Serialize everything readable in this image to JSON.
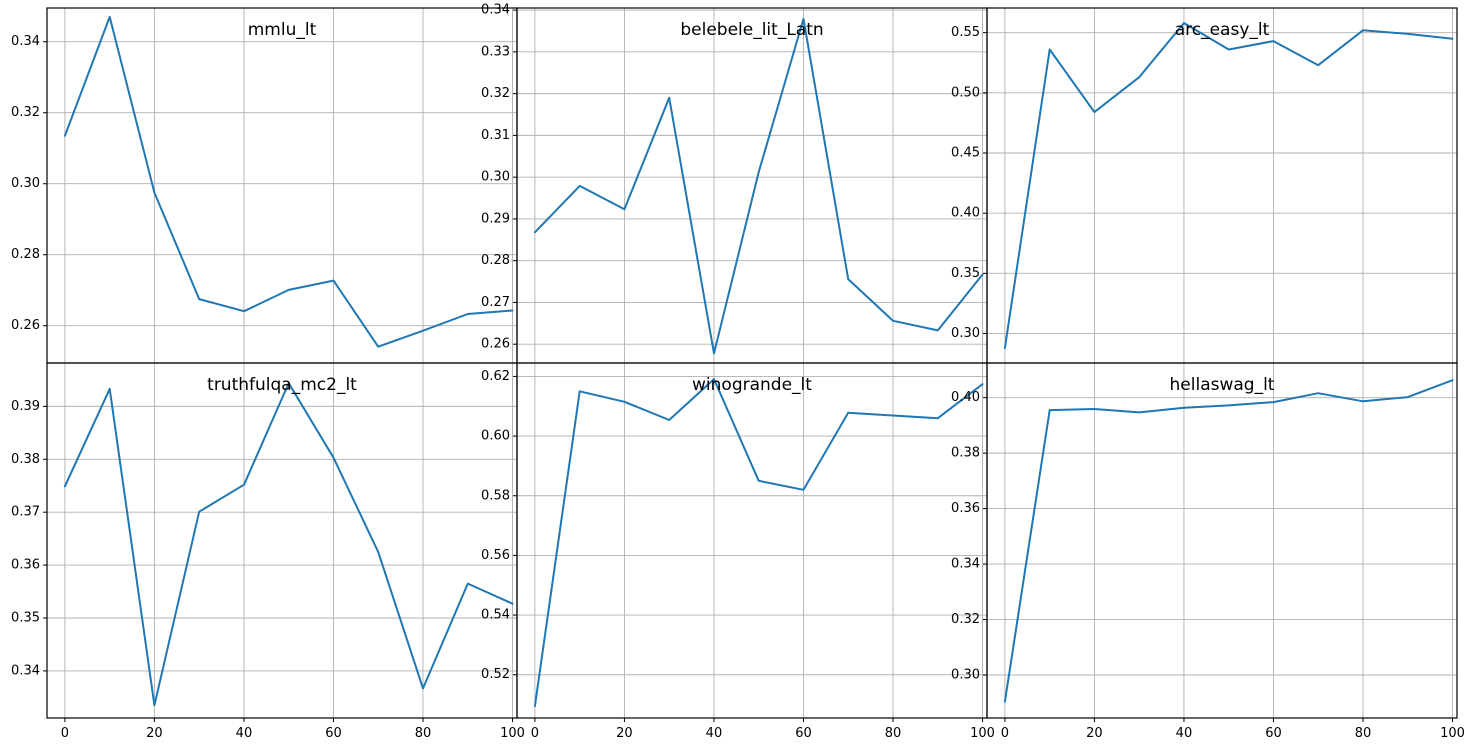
{
  "figure": {
    "line_color": "#1f77b4",
    "grid_color": "#b0b0b0",
    "layout": "2 rows x 3 columns, shared x axis, no legend"
  },
  "chart_data": [
    {
      "type": "line",
      "title": "mmlu_lt",
      "xlabel": "",
      "ylabel": "",
      "grid": true,
      "xlim": [
        -4,
        101
      ],
      "ylim": [
        0.2495,
        0.3495
      ],
      "xticks": [
        0,
        20,
        40,
        60,
        80,
        100
      ],
      "xtick_labels": [
        "0",
        "20",
        "40",
        "60",
        "80",
        "100"
      ],
      "yticks": [
        0.26,
        0.28,
        0.3,
        0.32,
        0.34
      ],
      "ytick_labels": [
        "0.26",
        "0.28",
        "0.30",
        "0.32",
        "0.34"
      ],
      "x": [
        0,
        10,
        20,
        30,
        40,
        50,
        60,
        70,
        80,
        90,
        100
      ],
      "series": [
        {
          "values": [
            0.3135,
            0.347,
            0.2975,
            0.2675,
            0.2641,
            0.2701,
            0.2727,
            0.2541,
            0.2586,
            0.2633,
            0.2643
          ]
        }
      ]
    },
    {
      "type": "line",
      "title": "belebele_lit_Latn",
      "xlabel": "",
      "ylabel": "",
      "grid": true,
      "xlim": [
        -4,
        101
      ],
      "ylim": [
        0.2555,
        0.3405
      ],
      "xticks": [
        0,
        20,
        40,
        60,
        80,
        100
      ],
      "xtick_labels": [
        "0",
        "20",
        "40",
        "60",
        "80",
        "100"
      ],
      "yticks": [
        0.26,
        0.27,
        0.28,
        0.29,
        0.3,
        0.31,
        0.32,
        0.33,
        0.34
      ],
      "ytick_labels": [
        "0.26",
        "0.27",
        "0.28",
        "0.29",
        "0.30",
        "0.31",
        "0.32",
        "0.33",
        "0.34"
      ],
      "x": [
        0,
        10,
        20,
        30,
        40,
        50,
        60,
        70,
        80,
        90,
        100
      ],
      "series": [
        {
          "values": [
            0.2868,
            0.2979,
            0.2923,
            0.319,
            0.2578,
            0.3012,
            0.3379,
            0.2756,
            0.2656,
            0.2633,
            0.2767
          ]
        }
      ]
    },
    {
      "type": "line",
      "title": "arc_easy_lt",
      "xlabel": "",
      "ylabel": "",
      "grid": true,
      "xlim": [
        -4,
        101
      ],
      "ylim": [
        0.2755,
        0.5705
      ],
      "xticks": [
        0,
        20,
        40,
        60,
        80,
        100
      ],
      "xtick_labels": [
        "0",
        "20",
        "40",
        "60",
        "80",
        "100"
      ],
      "yticks": [
        0.3,
        0.35,
        0.4,
        0.45,
        0.5,
        0.55
      ],
      "ytick_labels": [
        "0.30",
        "0.35",
        "0.40",
        "0.45",
        "0.50",
        "0.55"
      ],
      "x": [
        0,
        10,
        20,
        30,
        40,
        50,
        60,
        70,
        80,
        90,
        100
      ],
      "series": [
        {
          "values": [
            0.288,
            0.536,
            0.484,
            0.513,
            0.558,
            0.536,
            0.543,
            0.523,
            0.552,
            0.549,
            0.545
          ]
        }
      ]
    },
    {
      "type": "line",
      "title": "truthfulqa_mc2_lt",
      "xlabel": "",
      "ylabel": "",
      "grid": true,
      "xlim": [
        -4,
        101
      ],
      "ylim": [
        0.3311,
        0.3982
      ],
      "xticks": [
        0,
        20,
        40,
        60,
        80,
        100
      ],
      "xtick_labels": [
        "0",
        "20",
        "40",
        "60",
        "80",
        "100"
      ],
      "yticks": [
        0.34,
        0.35,
        0.36,
        0.37,
        0.38,
        0.39
      ],
      "ytick_labels": [
        "0.34",
        "0.35",
        "0.36",
        "0.37",
        "0.38",
        "0.39"
      ],
      "x": [
        0,
        10,
        20,
        30,
        40,
        50,
        60,
        70,
        80,
        90,
        100
      ],
      "series": [
        {
          "values": [
            0.3749,
            0.3933,
            0.3335,
            0.3701,
            0.3752,
            0.3944,
            0.3803,
            0.3625,
            0.3367,
            0.3565,
            0.3527
          ]
        }
      ]
    },
    {
      "type": "line",
      "title": "winogrande_lt",
      "xlabel": "",
      "ylabel": "",
      "grid": true,
      "xlim": [
        -4,
        101
      ],
      "ylim": [
        0.5055,
        0.6245
      ],
      "xticks": [
        0,
        20,
        40,
        60,
        80,
        100
      ],
      "xtick_labels": [
        "0",
        "20",
        "40",
        "60",
        "80",
        "100"
      ],
      "yticks": [
        0.52,
        0.54,
        0.56,
        0.58,
        0.6,
        0.62
      ],
      "ytick_labels": [
        "0.52",
        "0.54",
        "0.56",
        "0.58",
        "0.60",
        "0.62"
      ],
      "x": [
        0,
        10,
        20,
        30,
        40,
        50,
        60,
        70,
        80,
        90,
        100
      ],
      "series": [
        {
          "values": [
            0.5095,
            0.615,
            0.6115,
            0.6054,
            0.6191,
            0.585,
            0.582,
            0.6078,
            0.6069,
            0.606,
            0.6174
          ]
        }
      ]
    },
    {
      "type": "line",
      "title": "hellaswag_lt",
      "xlabel": "",
      "ylabel": "",
      "grid": true,
      "xlim": [
        -4,
        101
      ],
      "ylim": [
        0.2845,
        0.4125
      ],
      "xticks": [
        0,
        20,
        40,
        60,
        80,
        100
      ],
      "xtick_labels": [
        "0",
        "20",
        "40",
        "60",
        "80",
        "100"
      ],
      "yticks": [
        0.3,
        0.32,
        0.34,
        0.36,
        0.38,
        0.4
      ],
      "ytick_labels": [
        "0.30",
        "0.32",
        "0.34",
        "0.36",
        "0.38",
        "0.40"
      ],
      "x": [
        0,
        10,
        20,
        30,
        40,
        50,
        60,
        70,
        80,
        90,
        100
      ],
      "series": [
        {
          "values": [
            0.2904,
            0.3955,
            0.3959,
            0.3947,
            0.3964,
            0.3972,
            0.3984,
            0.4016,
            0.3987,
            0.4002,
            0.4063
          ]
        }
      ]
    }
  ]
}
